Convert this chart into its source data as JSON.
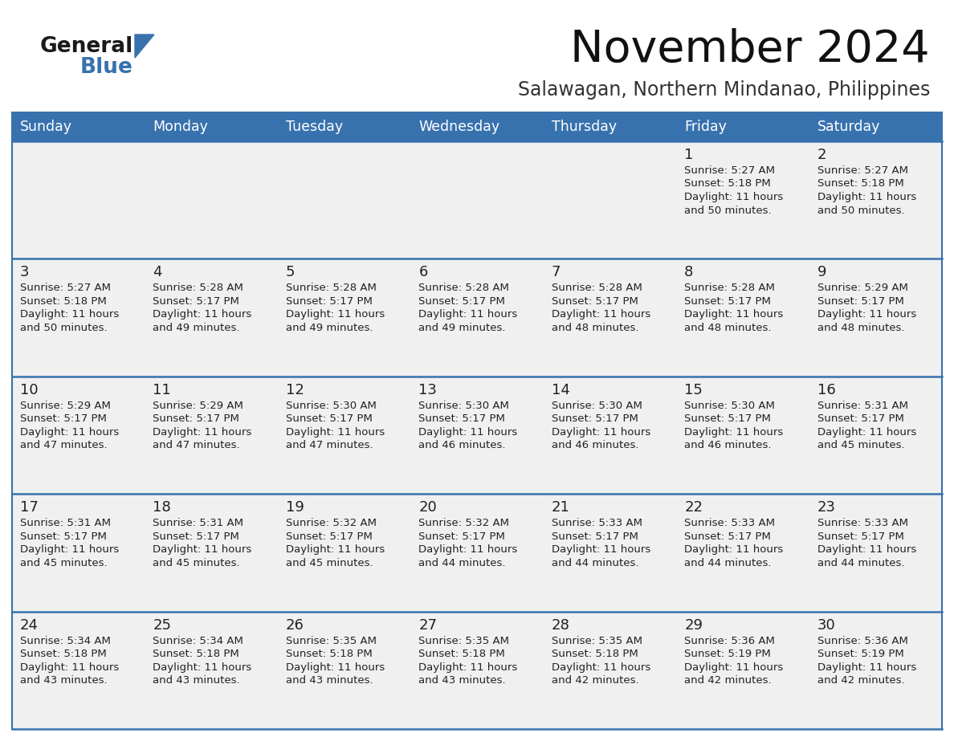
{
  "title": "November 2024",
  "subtitle": "Salawagan, Northern Mindanao, Philippines",
  "days_of_week": [
    "Sunday",
    "Monday",
    "Tuesday",
    "Wednesday",
    "Thursday",
    "Friday",
    "Saturday"
  ],
  "header_bg_color": "#3872ae",
  "header_text_color": "#FFFFFF",
  "cell_bg_color": "#f0f0f0",
  "cell_bg_white": "#ffffff",
  "cell_border_color": "#3872ae",
  "day_number_color": "#222222",
  "cell_text_color": "#222222",
  "logo_general_color": "#1a1a1a",
  "logo_blue_color": "#3872ae",
  "logo_triangle_color": "#3872ae",
  "fig_bg": "#ffffff",
  "weeks": [
    [
      {
        "day": null,
        "text": ""
      },
      {
        "day": null,
        "text": ""
      },
      {
        "day": null,
        "text": ""
      },
      {
        "day": null,
        "text": ""
      },
      {
        "day": null,
        "text": ""
      },
      {
        "day": 1,
        "text": "Sunrise: 5:27 AM\nSunset: 5:18 PM\nDaylight: 11 hours\nand 50 minutes."
      },
      {
        "day": 2,
        "text": "Sunrise: 5:27 AM\nSunset: 5:18 PM\nDaylight: 11 hours\nand 50 minutes."
      }
    ],
    [
      {
        "day": 3,
        "text": "Sunrise: 5:27 AM\nSunset: 5:18 PM\nDaylight: 11 hours\nand 50 minutes."
      },
      {
        "day": 4,
        "text": "Sunrise: 5:28 AM\nSunset: 5:17 PM\nDaylight: 11 hours\nand 49 minutes."
      },
      {
        "day": 5,
        "text": "Sunrise: 5:28 AM\nSunset: 5:17 PM\nDaylight: 11 hours\nand 49 minutes."
      },
      {
        "day": 6,
        "text": "Sunrise: 5:28 AM\nSunset: 5:17 PM\nDaylight: 11 hours\nand 49 minutes."
      },
      {
        "day": 7,
        "text": "Sunrise: 5:28 AM\nSunset: 5:17 PM\nDaylight: 11 hours\nand 48 minutes."
      },
      {
        "day": 8,
        "text": "Sunrise: 5:28 AM\nSunset: 5:17 PM\nDaylight: 11 hours\nand 48 minutes."
      },
      {
        "day": 9,
        "text": "Sunrise: 5:29 AM\nSunset: 5:17 PM\nDaylight: 11 hours\nand 48 minutes."
      }
    ],
    [
      {
        "day": 10,
        "text": "Sunrise: 5:29 AM\nSunset: 5:17 PM\nDaylight: 11 hours\nand 47 minutes."
      },
      {
        "day": 11,
        "text": "Sunrise: 5:29 AM\nSunset: 5:17 PM\nDaylight: 11 hours\nand 47 minutes."
      },
      {
        "day": 12,
        "text": "Sunrise: 5:30 AM\nSunset: 5:17 PM\nDaylight: 11 hours\nand 47 minutes."
      },
      {
        "day": 13,
        "text": "Sunrise: 5:30 AM\nSunset: 5:17 PM\nDaylight: 11 hours\nand 46 minutes."
      },
      {
        "day": 14,
        "text": "Sunrise: 5:30 AM\nSunset: 5:17 PM\nDaylight: 11 hours\nand 46 minutes."
      },
      {
        "day": 15,
        "text": "Sunrise: 5:30 AM\nSunset: 5:17 PM\nDaylight: 11 hours\nand 46 minutes."
      },
      {
        "day": 16,
        "text": "Sunrise: 5:31 AM\nSunset: 5:17 PM\nDaylight: 11 hours\nand 45 minutes."
      }
    ],
    [
      {
        "day": 17,
        "text": "Sunrise: 5:31 AM\nSunset: 5:17 PM\nDaylight: 11 hours\nand 45 minutes."
      },
      {
        "day": 18,
        "text": "Sunrise: 5:31 AM\nSunset: 5:17 PM\nDaylight: 11 hours\nand 45 minutes."
      },
      {
        "day": 19,
        "text": "Sunrise: 5:32 AM\nSunset: 5:17 PM\nDaylight: 11 hours\nand 45 minutes."
      },
      {
        "day": 20,
        "text": "Sunrise: 5:32 AM\nSunset: 5:17 PM\nDaylight: 11 hours\nand 44 minutes."
      },
      {
        "day": 21,
        "text": "Sunrise: 5:33 AM\nSunset: 5:17 PM\nDaylight: 11 hours\nand 44 minutes."
      },
      {
        "day": 22,
        "text": "Sunrise: 5:33 AM\nSunset: 5:17 PM\nDaylight: 11 hours\nand 44 minutes."
      },
      {
        "day": 23,
        "text": "Sunrise: 5:33 AM\nSunset: 5:17 PM\nDaylight: 11 hours\nand 44 minutes."
      }
    ],
    [
      {
        "day": 24,
        "text": "Sunrise: 5:34 AM\nSunset: 5:18 PM\nDaylight: 11 hours\nand 43 minutes."
      },
      {
        "day": 25,
        "text": "Sunrise: 5:34 AM\nSunset: 5:18 PM\nDaylight: 11 hours\nand 43 minutes."
      },
      {
        "day": 26,
        "text": "Sunrise: 5:35 AM\nSunset: 5:18 PM\nDaylight: 11 hours\nand 43 minutes."
      },
      {
        "day": 27,
        "text": "Sunrise: 5:35 AM\nSunset: 5:18 PM\nDaylight: 11 hours\nand 43 minutes."
      },
      {
        "day": 28,
        "text": "Sunrise: 5:35 AM\nSunset: 5:18 PM\nDaylight: 11 hours\nand 42 minutes."
      },
      {
        "day": 29,
        "text": "Sunrise: 5:36 AM\nSunset: 5:19 PM\nDaylight: 11 hours\nand 42 minutes."
      },
      {
        "day": 30,
        "text": "Sunrise: 5:36 AM\nSunset: 5:19 PM\nDaylight: 11 hours\nand 42 minutes."
      }
    ]
  ]
}
